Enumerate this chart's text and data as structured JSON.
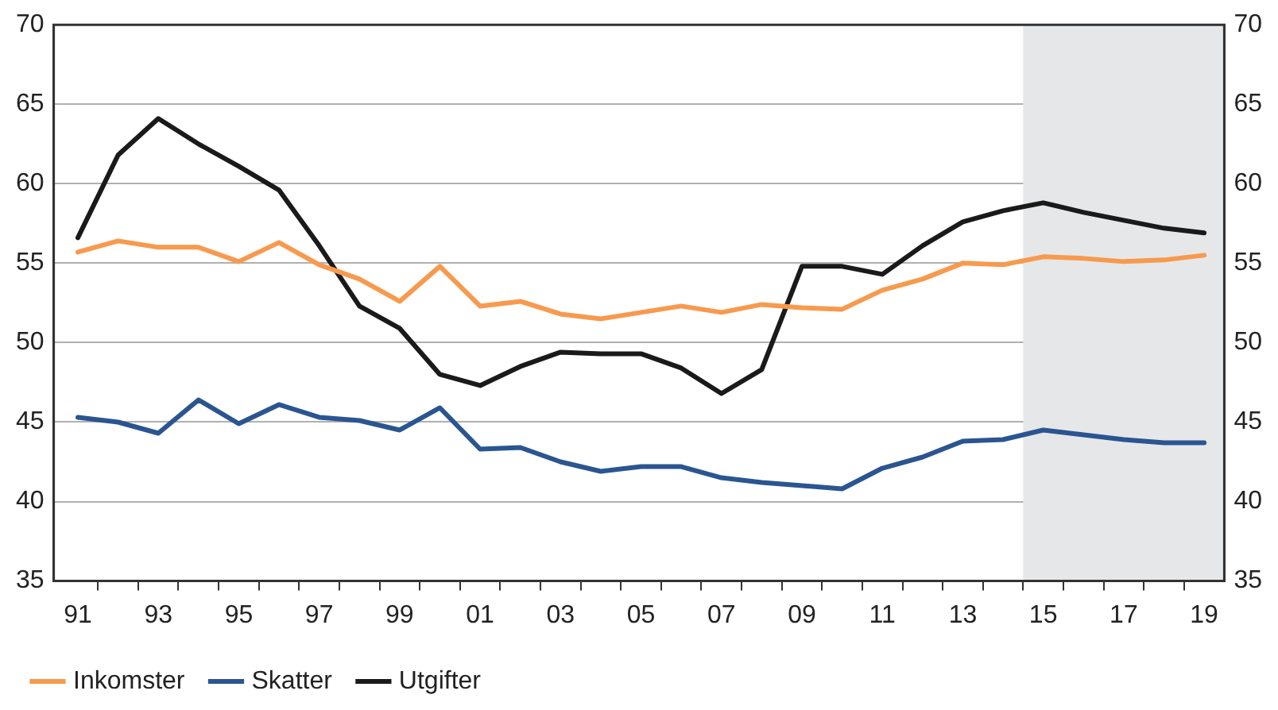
{
  "chart_data": {
    "type": "line",
    "x": [
      1991,
      1992,
      1993,
      1994,
      1995,
      1996,
      1997,
      1998,
      1999,
      2000,
      2001,
      2002,
      2003,
      2004,
      2005,
      2006,
      2007,
      2008,
      2009,
      2010,
      2011,
      2012,
      2013,
      2014,
      2015,
      2016,
      2017,
      2018,
      2019
    ],
    "xlim": [
      1990.4,
      2019.5
    ],
    "xticks": [
      {
        "value": 1991,
        "label": "91"
      },
      {
        "value": 1993,
        "label": "93"
      },
      {
        "value": 1995,
        "label": "95"
      },
      {
        "value": 1997,
        "label": "97"
      },
      {
        "value": 1999,
        "label": "99"
      },
      {
        "value": 2001,
        "label": "01"
      },
      {
        "value": 2003,
        "label": "03"
      },
      {
        "value": 2005,
        "label": "05"
      },
      {
        "value": 2007,
        "label": "07"
      },
      {
        "value": 2009,
        "label": "09"
      },
      {
        "value": 2011,
        "label": "11"
      },
      {
        "value": 2013,
        "label": "13"
      },
      {
        "value": 2015,
        "label": "15"
      },
      {
        "value": 2017,
        "label": "17"
      },
      {
        "value": 2019,
        "label": "19"
      },
      {
        "value": 1991.5,
        "label": null
      },
      {
        "value": 1992.5,
        "label": null
      },
      {
        "value": 1993.5,
        "label": null
      },
      {
        "value": 1994.5,
        "label": null
      },
      {
        "value": 1995.5,
        "label": null
      },
      {
        "value": 1996.5,
        "label": null
      },
      {
        "value": 1997.5,
        "label": null
      },
      {
        "value": 1998.5,
        "label": null
      },
      {
        "value": 1999.5,
        "label": null
      },
      {
        "value": 2000.5,
        "label": null
      },
      {
        "value": 2001.5,
        "label": null
      },
      {
        "value": 2002.5,
        "label": null
      },
      {
        "value": 2003.5,
        "label": null
      },
      {
        "value": 2004.5,
        "label": null
      },
      {
        "value": 2005.5,
        "label": null
      },
      {
        "value": 2006.5,
        "label": null
      },
      {
        "value": 2007.5,
        "label": null
      },
      {
        "value": 2008.5,
        "label": null
      },
      {
        "value": 2009.5,
        "label": null
      },
      {
        "value": 2010.5,
        "label": null
      },
      {
        "value": 2011.5,
        "label": null
      },
      {
        "value": 2012.5,
        "label": null
      },
      {
        "value": 2013.5,
        "label": null
      },
      {
        "value": 2014.5,
        "label": null
      },
      {
        "value": 2015.5,
        "label": null
      },
      {
        "value": 2016.5,
        "label": null
      },
      {
        "value": 2017.5,
        "label": null
      },
      {
        "value": 2018.5,
        "label": null
      }
    ],
    "ylim": [
      35,
      70
    ],
    "yticks": [
      35,
      40,
      45,
      50,
      55,
      60,
      65,
      70
    ],
    "y2lim": [
      35,
      70
    ],
    "y2ticks": [
      35,
      40,
      45,
      50,
      55,
      60,
      65,
      70
    ],
    "grid": "y",
    "legend": "bottom left",
    "marker": "none",
    "line_style": "solid",
    "bands": [
      {
        "axis": "x",
        "from": 2014.5,
        "to": 2019.5,
        "color": "#e6e7e8"
      }
    ],
    "series": [
      {
        "name": "Inkomster",
        "color": "#f79a4e",
        "values": [
          55.7,
          56.4,
          56.0,
          56.0,
          55.1,
          56.3,
          54.9,
          54.0,
          52.6,
          54.8,
          52.3,
          52.6,
          51.8,
          51.5,
          51.9,
          52.3,
          51.9,
          52.4,
          52.2,
          52.1,
          53.3,
          54.0,
          55.0,
          54.9,
          55.4,
          55.3,
          55.1,
          55.2,
          55.5
        ]
      },
      {
        "name": "Skatter",
        "color": "#2a5590",
        "values": [
          45.3,
          45.0,
          44.3,
          46.4,
          44.9,
          46.1,
          45.3,
          45.1,
          44.5,
          45.9,
          43.3,
          43.4,
          42.5,
          41.9,
          42.2,
          42.2,
          41.5,
          41.2,
          41.0,
          40.8,
          42.1,
          42.8,
          43.8,
          43.9,
          44.5,
          44.2,
          43.9,
          43.7,
          43.7
        ]
      },
      {
        "name": "Utgifter",
        "color": "#1a1a1a",
        "values": [
          56.6,
          61.8,
          64.1,
          62.5,
          61.1,
          59.6,
          56.1,
          52.3,
          50.9,
          48.0,
          47.3,
          48.5,
          49.4,
          49.3,
          49.3,
          48.4,
          46.8,
          48.3,
          54.8,
          54.8,
          54.3,
          56.1,
          57.6,
          58.3,
          58.8,
          58.2,
          57.7,
          57.2,
          56.9
        ]
      }
    ]
  }
}
